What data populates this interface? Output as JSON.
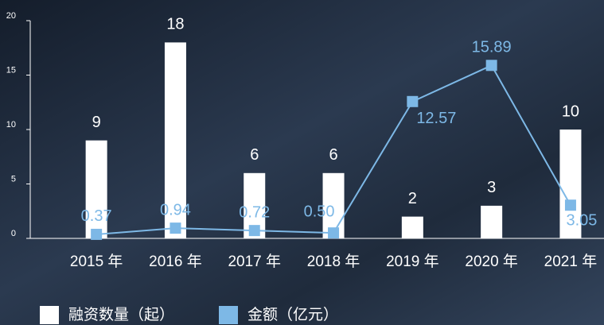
{
  "chart_data": {
    "type": "bar-line",
    "categories": [
      "2015 年",
      "2016 年",
      "2017 年",
      "2018 年",
      "2019 年",
      "2020 年",
      "2021 年"
    ],
    "series": [
      {
        "name": "融资数量（起）",
        "type": "bar",
        "color": "#ffffff",
        "values": [
          9,
          18,
          6,
          6,
          2,
          3,
          10
        ]
      },
      {
        "name": "金额（亿元）",
        "type": "line",
        "color": "#7db8e6",
        "values": [
          0.37,
          0.94,
          0.72,
          0.5,
          12.57,
          15.89,
          3.05
        ],
        "value_labels": [
          "0.37",
          "0.94",
          "0.72",
          "0.50",
          "12.57",
          "15.89",
          "3.05"
        ]
      }
    ],
    "ylim": [
      0,
      20
    ],
    "yticks": [
      0,
      5,
      10,
      15,
      20
    ]
  }
}
